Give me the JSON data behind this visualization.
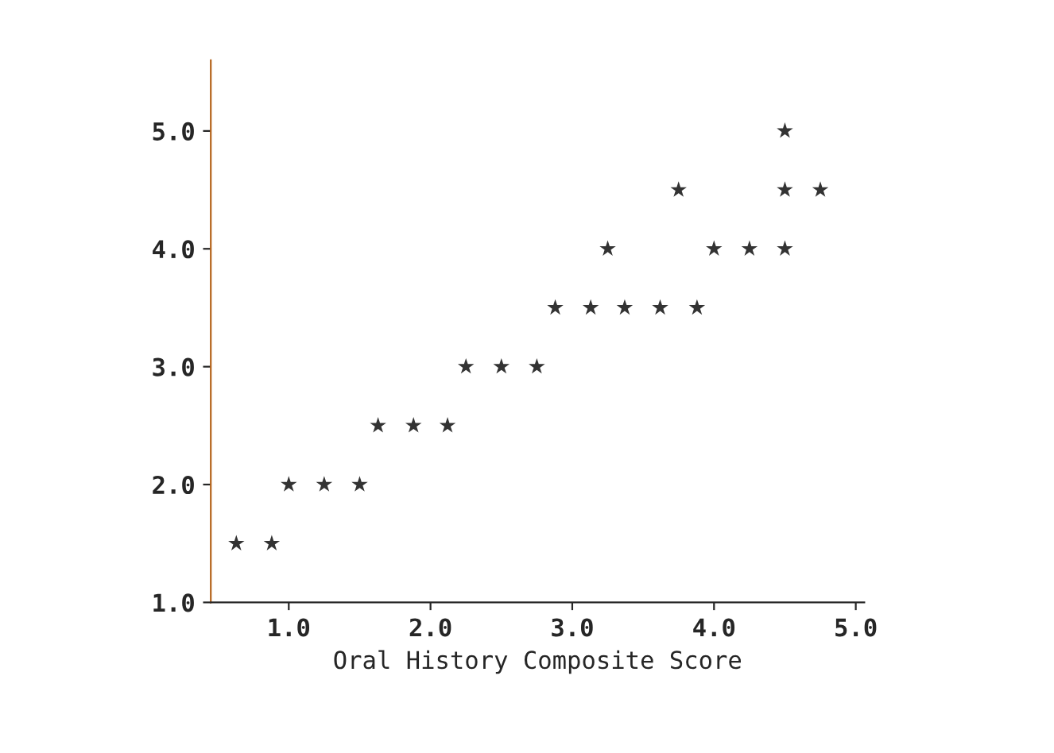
{
  "chart_data": {
    "type": "scatter",
    "xlabel": "Oral History Composite Score",
    "x": [
      0.63,
      0.88,
      1.0,
      1.25,
      1.5,
      1.63,
      1.88,
      2.12,
      2.25,
      2.5,
      2.75,
      2.88,
      3.13,
      3.37,
      3.62,
      3.88,
      3.25,
      4.0,
      4.25,
      4.5,
      3.75,
      4.5,
      4.75,
      4.5
    ],
    "values": [
      1.5,
      1.5,
      2.0,
      2.0,
      2.0,
      2.5,
      2.5,
      2.5,
      3.0,
      3.0,
      3.0,
      3.5,
      3.5,
      3.5,
      3.5,
      3.5,
      4.0,
      4.0,
      4.0,
      4.0,
      4.5,
      4.5,
      4.5,
      5.0
    ],
    "color": "#333333",
    "marker": "star",
    "grid": false,
    "legend": false,
    "xlim": [
      0.45,
      5.06
    ],
    "ylim": [
      1.0,
      5.6
    ],
    "xticks": [
      {
        "value": 1,
        "label": "1.0"
      },
      {
        "value": 2,
        "label": "2.0"
      },
      {
        "value": 3,
        "label": "3.0"
      },
      {
        "value": 4,
        "label": "4.0"
      },
      {
        "value": 5,
        "label": "5.0"
      }
    ],
    "yticks": [
      {
        "value": 1,
        "label": "1.0"
      },
      {
        "value": 2,
        "label": "2.0"
      },
      {
        "value": 3,
        "label": "3.0"
      },
      {
        "value": 4,
        "label": "4.0"
      },
      {
        "value": 5,
        "label": "5.0"
      }
    ]
  }
}
